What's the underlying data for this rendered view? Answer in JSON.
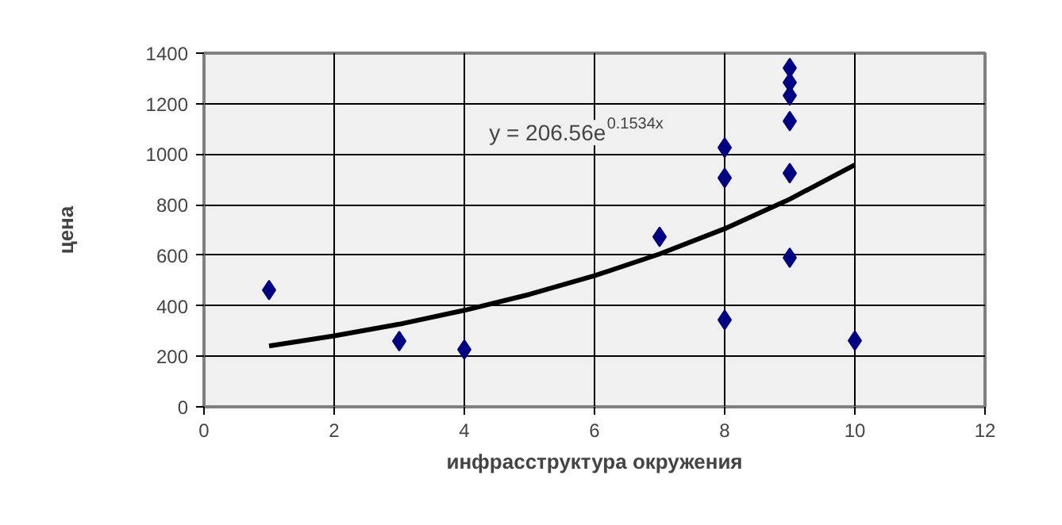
{
  "chart_data": {
    "type": "scatter",
    "xlabel": "инфрасструктура окружения",
    "ylabel": "цена",
    "xlim": [
      0,
      12
    ],
    "xticks": [
      0,
      2,
      4,
      6,
      8,
      10,
      12
    ],
    "ylim": [
      0,
      1400
    ],
    "yticks": [
      0,
      200,
      400,
      600,
      800,
      1000,
      1200,
      1400
    ],
    "grid": true,
    "marker": "diamond",
    "series": [
      {
        "color": "#000080",
        "x": [
          1,
          3,
          4,
          7,
          8,
          8,
          8,
          9,
          9,
          9,
          9,
          9,
          9,
          10
        ],
        "values": [
          462,
          260,
          227,
          673,
          1026,
          906,
          344,
          1341,
          1284,
          1232,
          1131,
          925,
          590,
          262
        ]
      },
      {
        "type": "line",
        "color": "#000000",
        "marker": "none",
        "x": [
          1,
          2,
          3,
          4,
          5,
          6,
          7,
          8,
          9,
          10
        ],
        "values": [
          241,
          281,
          327,
          382,
          445,
          519,
          605,
          705,
          822,
          958
        ]
      }
    ],
    "annotations": [
      "y = 206.56e$^{0.1534x}$"
    ]
  }
}
